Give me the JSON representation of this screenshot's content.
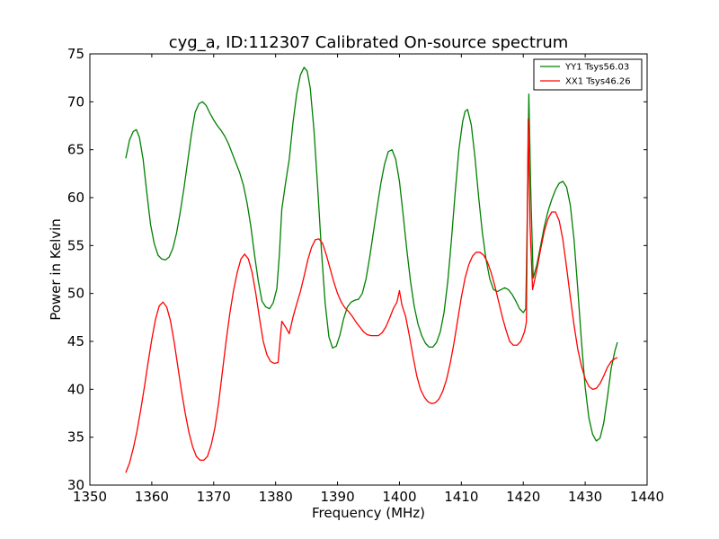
{
  "chart_data": {
    "type": "line",
    "title": "cyg_a, ID:112307 Calibrated On-source spectrum",
    "xlabel": "Frequency (MHz)",
    "ylabel": "Power in Kelvin",
    "xlim": [
      1350,
      1440
    ],
    "ylim": [
      30,
      75
    ],
    "xticks": [
      1350,
      1360,
      1370,
      1380,
      1390,
      1400,
      1410,
      1420,
      1430,
      1440
    ],
    "yticks": [
      30,
      35,
      40,
      45,
      50,
      55,
      60,
      65,
      70,
      75
    ],
    "grid": false,
    "legend_position": "top-right",
    "series": [
      {
        "name": "YY1 Tsys56.03",
        "color": "#008000",
        "points": [
          [
            1355.8,
            64.1
          ],
          [
            1356.4,
            66.0
          ],
          [
            1357.0,
            66.9
          ],
          [
            1357.5,
            67.1
          ],
          [
            1358.0,
            66.3
          ],
          [
            1358.6,
            64.0
          ],
          [
            1359.2,
            60.5
          ],
          [
            1359.8,
            57.2
          ],
          [
            1360.4,
            55.2
          ],
          [
            1361.0,
            54.0
          ],
          [
            1361.6,
            53.6
          ],
          [
            1362.2,
            53.5
          ],
          [
            1362.8,
            53.8
          ],
          [
            1363.4,
            54.7
          ],
          [
            1364.0,
            56.3
          ],
          [
            1364.6,
            58.5
          ],
          [
            1365.2,
            61.0
          ],
          [
            1365.8,
            63.8
          ],
          [
            1366.4,
            66.6
          ],
          [
            1367.0,
            68.9
          ],
          [
            1367.6,
            69.8
          ],
          [
            1368.2,
            70.0
          ],
          [
            1368.8,
            69.6
          ],
          [
            1369.4,
            68.8
          ],
          [
            1370.0,
            68.1
          ],
          [
            1370.6,
            67.5
          ],
          [
            1371.2,
            67.0
          ],
          [
            1371.8,
            66.4
          ],
          [
            1372.4,
            65.6
          ],
          [
            1373.0,
            64.6
          ],
          [
            1373.6,
            63.6
          ],
          [
            1374.2,
            62.6
          ],
          [
            1374.8,
            61.3
          ],
          [
            1375.4,
            59.4
          ],
          [
            1376.0,
            57.0
          ],
          [
            1376.6,
            54.0
          ],
          [
            1377.2,
            51.3
          ],
          [
            1377.8,
            49.2
          ],
          [
            1378.4,
            48.6
          ],
          [
            1379.0,
            48.4
          ],
          [
            1379.6,
            49.0
          ],
          [
            1380.2,
            50.5
          ],
          [
            1380.6,
            54.0
          ],
          [
            1381.0,
            58.8
          ],
          [
            1381.6,
            61.5
          ],
          [
            1382.2,
            64.0
          ],
          [
            1382.8,
            67.8
          ],
          [
            1383.4,
            70.8
          ],
          [
            1384.0,
            72.8
          ],
          [
            1384.6,
            73.6
          ],
          [
            1385.1,
            73.2
          ],
          [
            1385.6,
            71.4
          ],
          [
            1386.2,
            67.0
          ],
          [
            1386.8,
            61.0
          ],
          [
            1387.4,
            54.5
          ],
          [
            1388.0,
            49.0
          ],
          [
            1388.6,
            45.5
          ],
          [
            1389.2,
            44.3
          ],
          [
            1389.8,
            44.5
          ],
          [
            1390.4,
            45.7
          ],
          [
            1391.0,
            47.4
          ],
          [
            1391.6,
            48.6
          ],
          [
            1392.2,
            49.1
          ],
          [
            1392.8,
            49.3
          ],
          [
            1393.4,
            49.4
          ],
          [
            1394.0,
            50.0
          ],
          [
            1394.6,
            51.5
          ],
          [
            1395.2,
            53.8
          ],
          [
            1395.8,
            56.4
          ],
          [
            1396.4,
            59.0
          ],
          [
            1397.0,
            61.5
          ],
          [
            1397.6,
            63.5
          ],
          [
            1398.2,
            64.8
          ],
          [
            1398.8,
            65.0
          ],
          [
            1399.4,
            64.0
          ],
          [
            1400.0,
            61.7
          ],
          [
            1400.6,
            58.2
          ],
          [
            1401.2,
            54.5
          ],
          [
            1401.8,
            51.2
          ],
          [
            1402.4,
            48.6
          ],
          [
            1403.0,
            46.8
          ],
          [
            1403.6,
            45.6
          ],
          [
            1404.2,
            44.8
          ],
          [
            1404.8,
            44.4
          ],
          [
            1405.4,
            44.4
          ],
          [
            1406.0,
            44.9
          ],
          [
            1406.6,
            46.0
          ],
          [
            1407.2,
            48.0
          ],
          [
            1407.8,
            51.2
          ],
          [
            1408.4,
            55.6
          ],
          [
            1409.0,
            60.5
          ],
          [
            1409.6,
            65.0
          ],
          [
            1410.2,
            67.9
          ],
          [
            1410.6,
            69.0
          ],
          [
            1411.0,
            69.2
          ],
          [
            1411.6,
            67.6
          ],
          [
            1412.2,
            64.2
          ],
          [
            1412.8,
            60.0
          ],
          [
            1413.4,
            56.3
          ],
          [
            1414.0,
            53.5
          ],
          [
            1414.6,
            51.5
          ],
          [
            1415.2,
            50.4
          ],
          [
            1415.8,
            50.2
          ],
          [
            1416.4,
            50.4
          ],
          [
            1417.0,
            50.6
          ],
          [
            1417.6,
            50.4
          ],
          [
            1418.2,
            49.9
          ],
          [
            1418.8,
            49.2
          ],
          [
            1419.4,
            48.4
          ],
          [
            1420.0,
            48.0
          ],
          [
            1420.4,
            48.4
          ],
          [
            1420.6,
            56.0
          ],
          [
            1420.9,
            70.8
          ],
          [
            1421.2,
            61.0
          ],
          [
            1421.6,
            51.6
          ],
          [
            1422.2,
            53.0
          ],
          [
            1422.8,
            55.0
          ],
          [
            1423.4,
            57.0
          ],
          [
            1424.0,
            58.6
          ],
          [
            1424.6,
            59.8
          ],
          [
            1425.2,
            60.8
          ],
          [
            1425.8,
            61.5
          ],
          [
            1426.4,
            61.7
          ],
          [
            1427.0,
            61.1
          ],
          [
            1427.6,
            59.2
          ],
          [
            1428.2,
            55.6
          ],
          [
            1428.8,
            50.5
          ],
          [
            1429.4,
            45.0
          ],
          [
            1430.0,
            40.2
          ],
          [
            1430.6,
            37.0
          ],
          [
            1431.2,
            35.3
          ],
          [
            1431.8,
            34.6
          ],
          [
            1432.4,
            34.9
          ],
          [
            1433.0,
            36.5
          ],
          [
            1433.6,
            39.2
          ],
          [
            1434.2,
            42.2
          ],
          [
            1434.8,
            44.0
          ],
          [
            1435.2,
            44.9
          ]
        ]
      },
      {
        "name": "XX1 Tsys46.26",
        "color": "#ff0000",
        "points": [
          [
            1355.8,
            31.3
          ],
          [
            1356.4,
            32.3
          ],
          [
            1357.0,
            33.8
          ],
          [
            1357.6,
            35.6
          ],
          [
            1358.2,
            37.8
          ],
          [
            1358.8,
            40.2
          ],
          [
            1359.4,
            42.8
          ],
          [
            1360.0,
            45.2
          ],
          [
            1360.6,
            47.3
          ],
          [
            1361.2,
            48.7
          ],
          [
            1361.8,
            49.1
          ],
          [
            1362.4,
            48.6
          ],
          [
            1363.0,
            47.2
          ],
          [
            1363.6,
            45.0
          ],
          [
            1364.2,
            42.4
          ],
          [
            1364.8,
            39.8
          ],
          [
            1365.4,
            37.5
          ],
          [
            1366.0,
            35.5
          ],
          [
            1366.6,
            34.0
          ],
          [
            1367.2,
            33.0
          ],
          [
            1367.8,
            32.6
          ],
          [
            1368.4,
            32.6
          ],
          [
            1369.0,
            33.0
          ],
          [
            1369.6,
            34.2
          ],
          [
            1370.2,
            36.0
          ],
          [
            1370.8,
            38.6
          ],
          [
            1371.4,
            41.8
          ],
          [
            1372.0,
            45.0
          ],
          [
            1372.6,
            47.9
          ],
          [
            1373.2,
            50.3
          ],
          [
            1373.8,
            52.2
          ],
          [
            1374.4,
            53.6
          ],
          [
            1375.0,
            54.1
          ],
          [
            1375.6,
            53.6
          ],
          [
            1376.2,
            52.2
          ],
          [
            1376.8,
            50.0
          ],
          [
            1377.4,
            47.4
          ],
          [
            1378.0,
            45.0
          ],
          [
            1378.6,
            43.6
          ],
          [
            1379.2,
            42.9
          ],
          [
            1379.8,
            42.7
          ],
          [
            1380.4,
            42.8
          ],
          [
            1381.0,
            47.1
          ],
          [
            1381.6,
            46.5
          ],
          [
            1382.2,
            45.8
          ],
          [
            1382.8,
            47.5
          ],
          [
            1383.4,
            48.9
          ],
          [
            1384.0,
            50.2
          ],
          [
            1384.6,
            51.8
          ],
          [
            1385.2,
            53.5
          ],
          [
            1385.8,
            54.8
          ],
          [
            1386.4,
            55.6
          ],
          [
            1387.0,
            55.7
          ],
          [
            1387.6,
            55.2
          ],
          [
            1388.2,
            54.0
          ],
          [
            1388.8,
            52.6
          ],
          [
            1389.4,
            51.2
          ],
          [
            1390.0,
            50.0
          ],
          [
            1390.6,
            49.1
          ],
          [
            1391.2,
            48.5
          ],
          [
            1391.8,
            48.1
          ],
          [
            1392.4,
            47.6
          ],
          [
            1393.0,
            47.0
          ],
          [
            1393.6,
            46.5
          ],
          [
            1394.2,
            46.0
          ],
          [
            1394.8,
            45.7
          ],
          [
            1395.4,
            45.6
          ],
          [
            1396.0,
            45.6
          ],
          [
            1396.6,
            45.6
          ],
          [
            1397.2,
            45.9
          ],
          [
            1397.8,
            46.5
          ],
          [
            1398.4,
            47.4
          ],
          [
            1399.0,
            48.4
          ],
          [
            1399.6,
            49.1
          ],
          [
            1400.0,
            50.3
          ],
          [
            1400.4,
            48.8
          ],
          [
            1401.0,
            47.6
          ],
          [
            1401.6,
            45.6
          ],
          [
            1402.2,
            43.4
          ],
          [
            1402.8,
            41.4
          ],
          [
            1403.4,
            40.0
          ],
          [
            1404.0,
            39.2
          ],
          [
            1404.6,
            38.7
          ],
          [
            1405.2,
            38.5
          ],
          [
            1405.8,
            38.6
          ],
          [
            1406.4,
            39.0
          ],
          [
            1407.0,
            39.8
          ],
          [
            1407.6,
            41.0
          ],
          [
            1408.2,
            42.7
          ],
          [
            1408.8,
            44.8
          ],
          [
            1409.4,
            47.2
          ],
          [
            1410.0,
            49.6
          ],
          [
            1410.6,
            51.6
          ],
          [
            1411.2,
            53.0
          ],
          [
            1411.8,
            53.9
          ],
          [
            1412.4,
            54.3
          ],
          [
            1413.0,
            54.3
          ],
          [
            1413.6,
            54.0
          ],
          [
            1414.2,
            53.3
          ],
          [
            1414.8,
            52.2
          ],
          [
            1415.4,
            50.8
          ],
          [
            1416.0,
            49.2
          ],
          [
            1416.6,
            47.6
          ],
          [
            1417.2,
            46.2
          ],
          [
            1417.8,
            45.0
          ],
          [
            1418.4,
            44.6
          ],
          [
            1419.0,
            44.6
          ],
          [
            1419.6,
            45.0
          ],
          [
            1420.2,
            46.0
          ],
          [
            1420.5,
            47.0
          ],
          [
            1420.8,
            68.2
          ],
          [
            1421.1,
            57.0
          ],
          [
            1421.5,
            50.4
          ],
          [
            1422.2,
            52.5
          ],
          [
            1422.8,
            54.6
          ],
          [
            1423.4,
            56.5
          ],
          [
            1424.0,
            57.8
          ],
          [
            1424.6,
            58.5
          ],
          [
            1425.2,
            58.5
          ],
          [
            1425.8,
            57.6
          ],
          [
            1426.4,
            55.6
          ],
          [
            1427.0,
            52.7
          ],
          [
            1427.6,
            49.6
          ],
          [
            1428.2,
            46.7
          ],
          [
            1428.8,
            44.2
          ],
          [
            1429.4,
            42.4
          ],
          [
            1430.0,
            41.1
          ],
          [
            1430.6,
            40.3
          ],
          [
            1431.2,
            40.0
          ],
          [
            1431.8,
            40.1
          ],
          [
            1432.4,
            40.6
          ],
          [
            1433.0,
            41.4
          ],
          [
            1433.6,
            42.3
          ],
          [
            1434.2,
            42.9
          ],
          [
            1434.8,
            43.2
          ],
          [
            1435.2,
            43.3
          ]
        ]
      }
    ]
  }
}
